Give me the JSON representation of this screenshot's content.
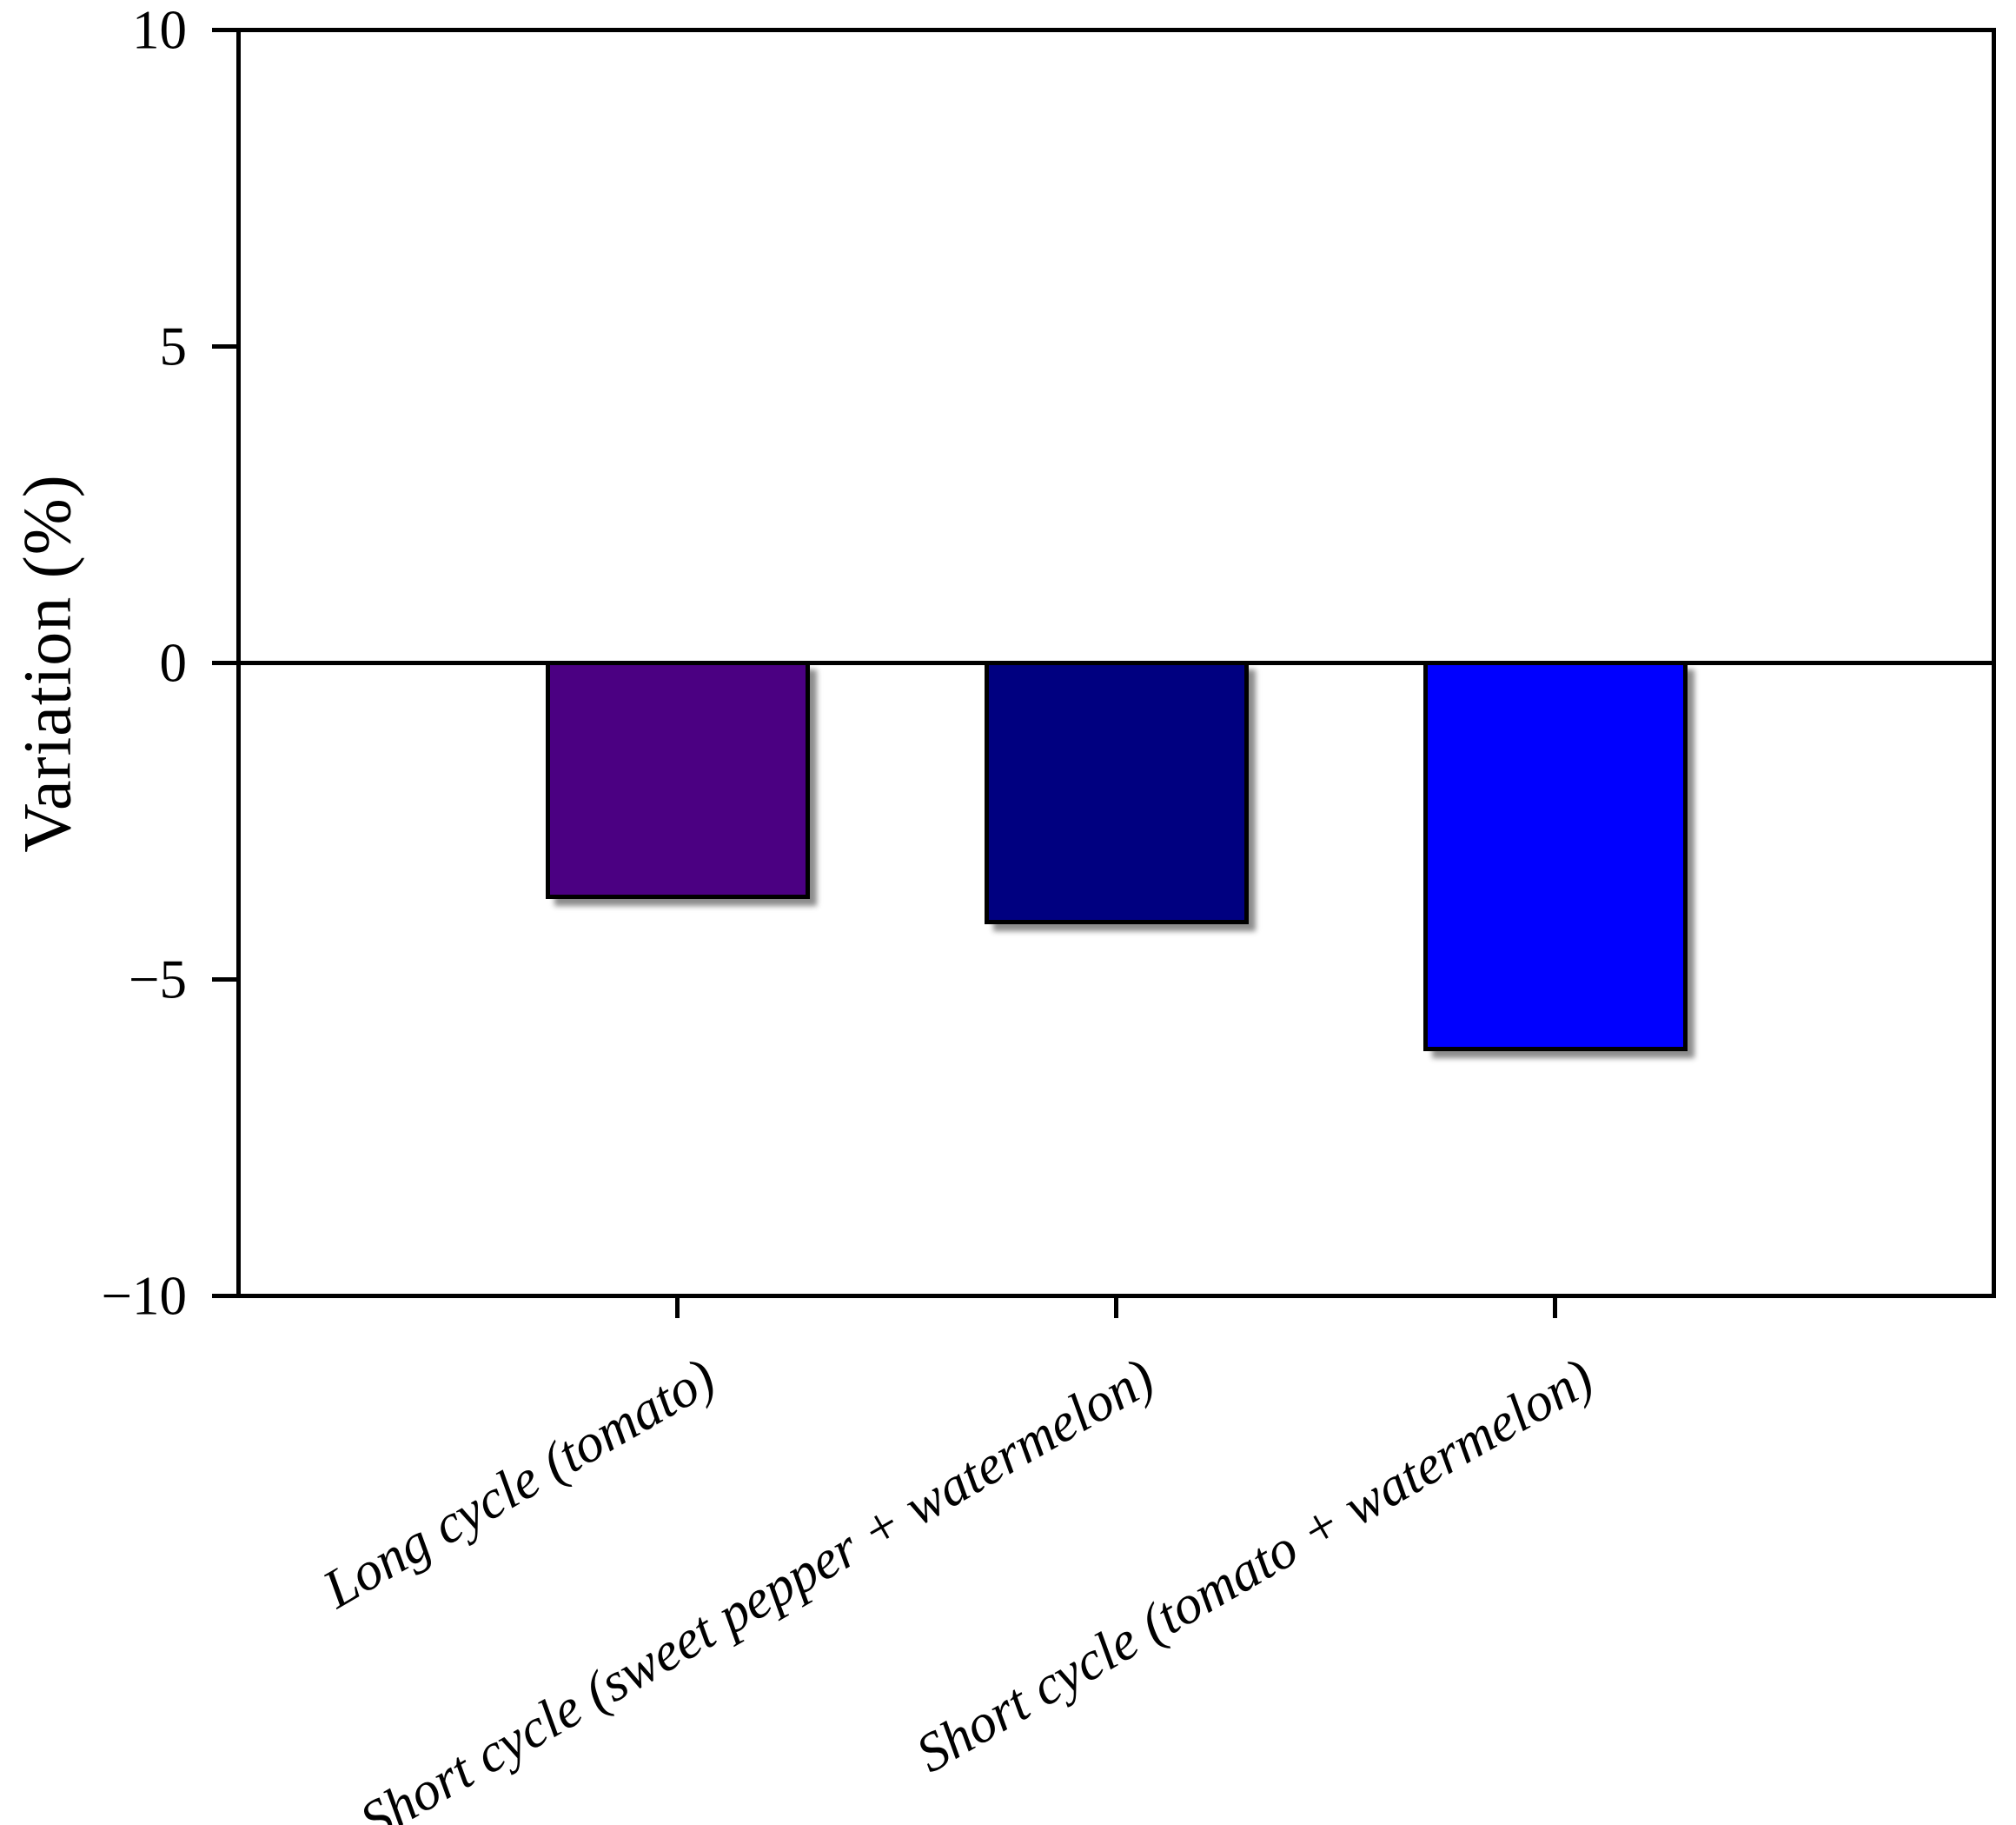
{
  "figure": {
    "background": "#ffffff"
  },
  "chart_data": {
    "type": "bar",
    "ylabel": "Variation (%)",
    "categories": [
      "Long cycle (tomato)",
      "Short cycle (sweet pepper + watermelon)",
      "Short cycle (tomato + watermelon)"
    ],
    "values": [
      -3.7,
      -4.1,
      -6.1
    ],
    "bar_colors": [
      "#4B0082",
      "#000080",
      "#0000FF"
    ],
    "bar_edge_color": "#000000",
    "ylim": [
      -10,
      10
    ],
    "yticks": [
      10,
      5,
      0,
      -5,
      -10
    ],
    "ytick_labels": [
      "10",
      "5",
      "0",
      "−5",
      "−10"
    ],
    "x_tick_label_rotation_deg": 30,
    "zero_line": true,
    "grid": false
  }
}
